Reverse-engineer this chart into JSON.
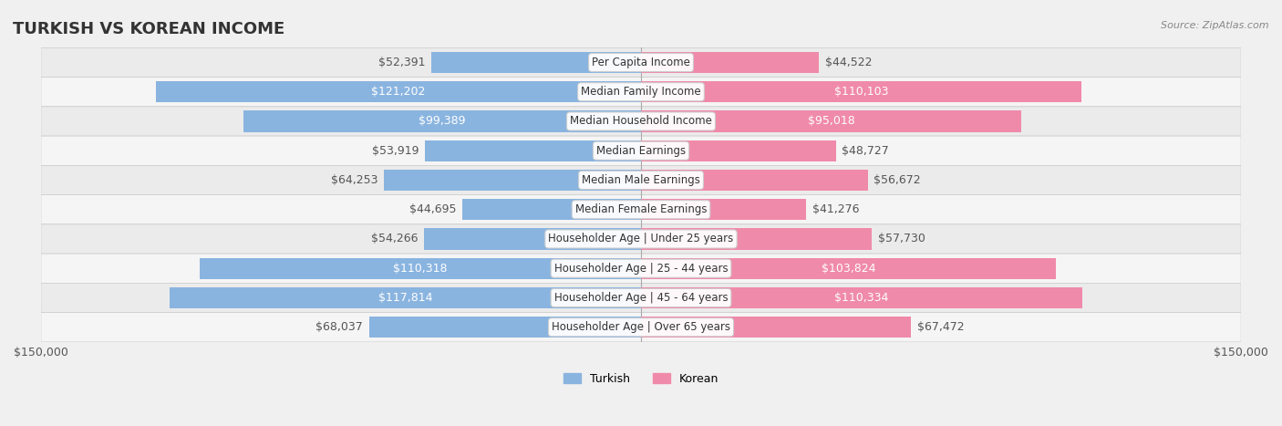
{
  "title": "TURKISH VS KOREAN INCOME",
  "source": "Source: ZipAtlas.com",
  "categories": [
    "Per Capita Income",
    "Median Family Income",
    "Median Household Income",
    "Median Earnings",
    "Median Male Earnings",
    "Median Female Earnings",
    "Householder Age | Under 25 years",
    "Householder Age | 25 - 44 years",
    "Householder Age | 45 - 64 years",
    "Householder Age | Over 65 years"
  ],
  "turkish_values": [
    52391,
    121202,
    99389,
    53919,
    64253,
    44695,
    54266,
    110318,
    117814,
    68037
  ],
  "korean_values": [
    44522,
    110103,
    95018,
    48727,
    56672,
    41276,
    57730,
    103824,
    110334,
    67472
  ],
  "turkish_color": "#8ab4e0",
  "korean_color": "#f08aaa",
  "turkish_label_color_inside": "#ffffff",
  "korean_label_color_inside": "#ffffff",
  "turkish_label_color_outside": "#555555",
  "korean_label_color_outside": "#555555",
  "max_value": 150000,
  "bg_color": "#f5f5f5",
  "row_bg_color": "#eeeeee",
  "row_bg_color2": "#f9f9f9",
  "inside_threshold": 80000,
  "label_fontsize": 9,
  "title_fontsize": 13,
  "axis_label": "$150,000"
}
